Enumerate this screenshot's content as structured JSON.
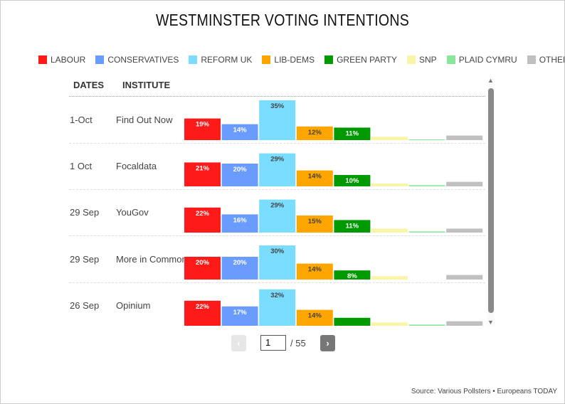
{
  "chart_data": {
    "type": "bar",
    "title": "WESTMINSTER VOTING INTENTIONS",
    "columns": {
      "dates": "DATES",
      "institute": "INSTITUTE"
    },
    "parties": [
      {
        "name": "LABOUR",
        "color": "#ff1a1a"
      },
      {
        "name": "CONSERVATIVES",
        "color": "#6a9cff"
      },
      {
        "name": "REFORM UK",
        "color": "#7adcff"
      },
      {
        "name": "LIB-DEMS",
        "color": "#ffa500"
      },
      {
        "name": "GREEN PARTY",
        "color": "#009a00"
      },
      {
        "name": "SNP",
        "color": "#f8f5a8"
      },
      {
        "name": "PLAID CYMRU",
        "color": "#8ae69a"
      },
      {
        "name": "OTHERS",
        "color": "#c0c0c0"
      }
    ],
    "polls": [
      {
        "date": "1-Oct",
        "institute": "Find Out Now",
        "values": [
          19,
          14,
          35,
          12,
          11,
          3,
          0.5,
          4
        ]
      },
      {
        "date": "1 Oct",
        "institute": "Focaldata",
        "values": [
          21,
          20,
          29,
          14,
          10,
          2.5,
          1,
          4
        ]
      },
      {
        "date": "29 Sep",
        "institute": "YouGov",
        "values": [
          22,
          16,
          29,
          15,
          11,
          3.5,
          1,
          3.5
        ]
      },
      {
        "date": "29 Sep",
        "institute": "More in Common",
        "values": [
          20,
          20,
          30,
          14,
          8,
          3,
          0,
          4
        ]
      },
      {
        "date": "26 Sep",
        "institute": "Opinium",
        "values": [
          22,
          17,
          32,
          14,
          7,
          3,
          1,
          4
        ]
      }
    ],
    "label_min": 8
  },
  "pagination": {
    "prev": "‹",
    "next": "›",
    "current": "1",
    "total": "/ 55"
  },
  "source": "Source: Various Pollsters • Europeans TODAY"
}
